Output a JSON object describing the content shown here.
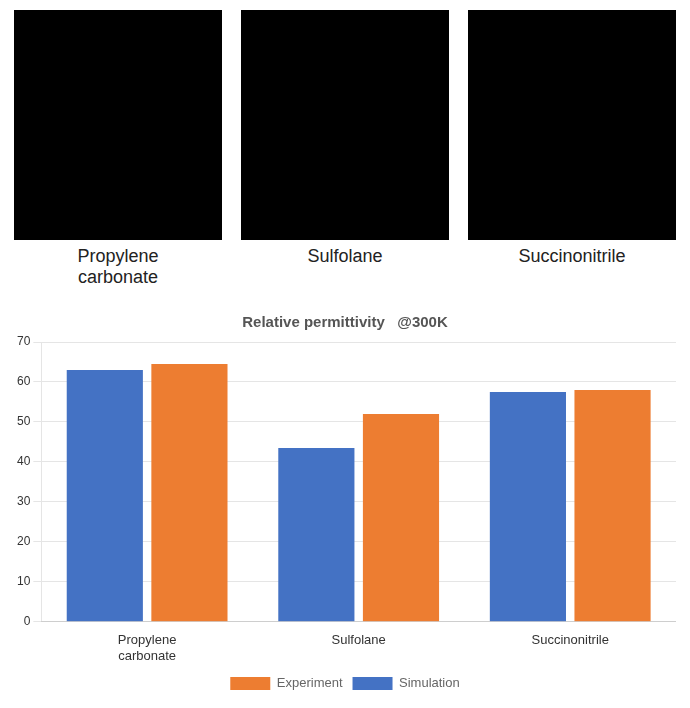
{
  "chart_data": {
    "type": "bar",
    "title": "Relative permittivity   @300K",
    "categories": [
      "Propylene\ncarbonate",
      "Sulfolane",
      "Succinonitrile"
    ],
    "series": [
      {
        "name": "Simulation",
        "color": "#4472C4",
        "values": [
          63.0,
          43.5,
          57.5
        ]
      },
      {
        "name": "Experiment",
        "color": "#ED7D31",
        "values": [
          64.5,
          52.0,
          58.0
        ]
      }
    ],
    "ylim": [
      0,
      70
    ],
    "yticks": [
      0,
      10,
      20,
      30,
      40,
      50,
      60,
      70
    ],
    "grid": true,
    "legend": "bottom",
    "annotations": [
      "Propylene\ncarbonate",
      "Sulfolane",
      "Succinonitrile"
    ]
  }
}
